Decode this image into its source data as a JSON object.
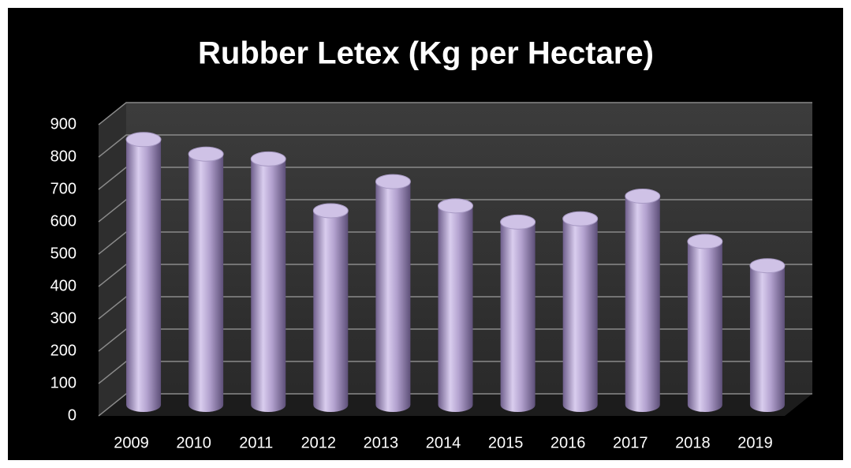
{
  "chart_data": {
    "type": "bar",
    "title": "Rubber Letex (Kg per Hectare)",
    "categories": [
      "2009",
      "2010",
      "2011",
      "2012",
      "2013",
      "2014",
      "2015",
      "2016",
      "2017",
      "2018",
      "2019"
    ],
    "values": [
      820,
      775,
      760,
      600,
      690,
      615,
      565,
      575,
      645,
      505,
      430
    ],
    "color": "#b3a2cf",
    "ylim": [
      0,
      900
    ],
    "yticks": [
      0,
      100,
      200,
      300,
      400,
      500,
      600,
      700,
      800,
      900
    ],
    "grid": true
  }
}
